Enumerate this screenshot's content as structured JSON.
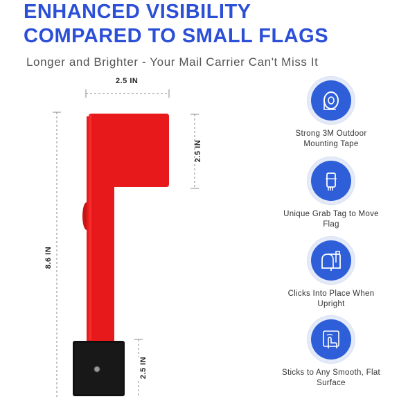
{
  "header": {
    "title_line1": "ENHANCED VISIBILITY",
    "title_line2": "COMPARED TO SMALL FLAGS",
    "subtitle": "Longer and Brighter - Your Mail Carrier Can't Miss It"
  },
  "dimensions": {
    "flag_width": "2.5 IN",
    "flag_height": "2.5 IN",
    "total_length": "8.6 IN",
    "base_height": "2.5 IN"
  },
  "colors": {
    "title": "#2b4fd6",
    "flag": "#e8191b",
    "badge": "#2f5fd8",
    "base": "#111111"
  },
  "features": [
    {
      "icon": "tape-roll-icon",
      "label": "Strong 3M Outdoor Mounting Tape"
    },
    {
      "icon": "grab-tag-icon",
      "label": "Unique Grab Tag to Move Flag"
    },
    {
      "icon": "mailbox-icon",
      "label": "Clicks Into Place When Upright"
    },
    {
      "icon": "hand-touch-icon",
      "label": "Sticks to Any Smooth, Flat Surface"
    }
  ]
}
